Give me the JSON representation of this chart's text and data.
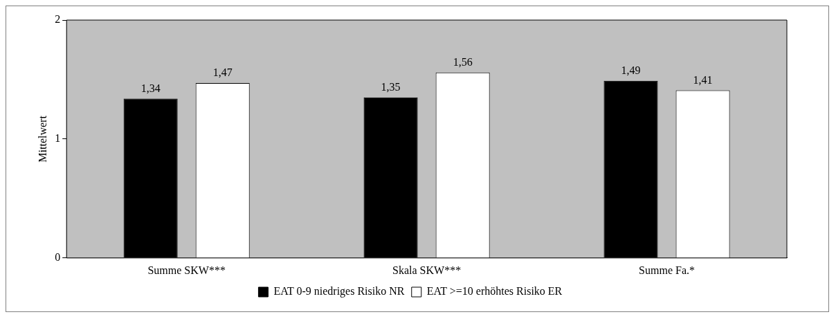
{
  "chart_data": {
    "type": "bar",
    "ylabel": "Mittelwert",
    "categories": [
      "Summe SKW***",
      "Skala SKW***",
      "Summe Fa.*"
    ],
    "series": [
      {
        "name": "EAT 0-9 niedriges Risiko NR",
        "color": "#000000",
        "values": [
          1.34,
          1.35,
          1.49
        ],
        "value_labels": [
          "1,34",
          "1,35",
          "1,49"
        ]
      },
      {
        "name": "EAT >=10 erhöhtes Risiko ER",
        "color": "#ffffff",
        "values": [
          1.47,
          1.56,
          1.41
        ],
        "value_labels": [
          "1,47",
          "1,56",
          "1,41"
        ]
      }
    ],
    "ylim": [
      0,
      2
    ],
    "yticks": [
      0,
      1,
      2
    ],
    "grid": false,
    "legend": "bottom"
  }
}
